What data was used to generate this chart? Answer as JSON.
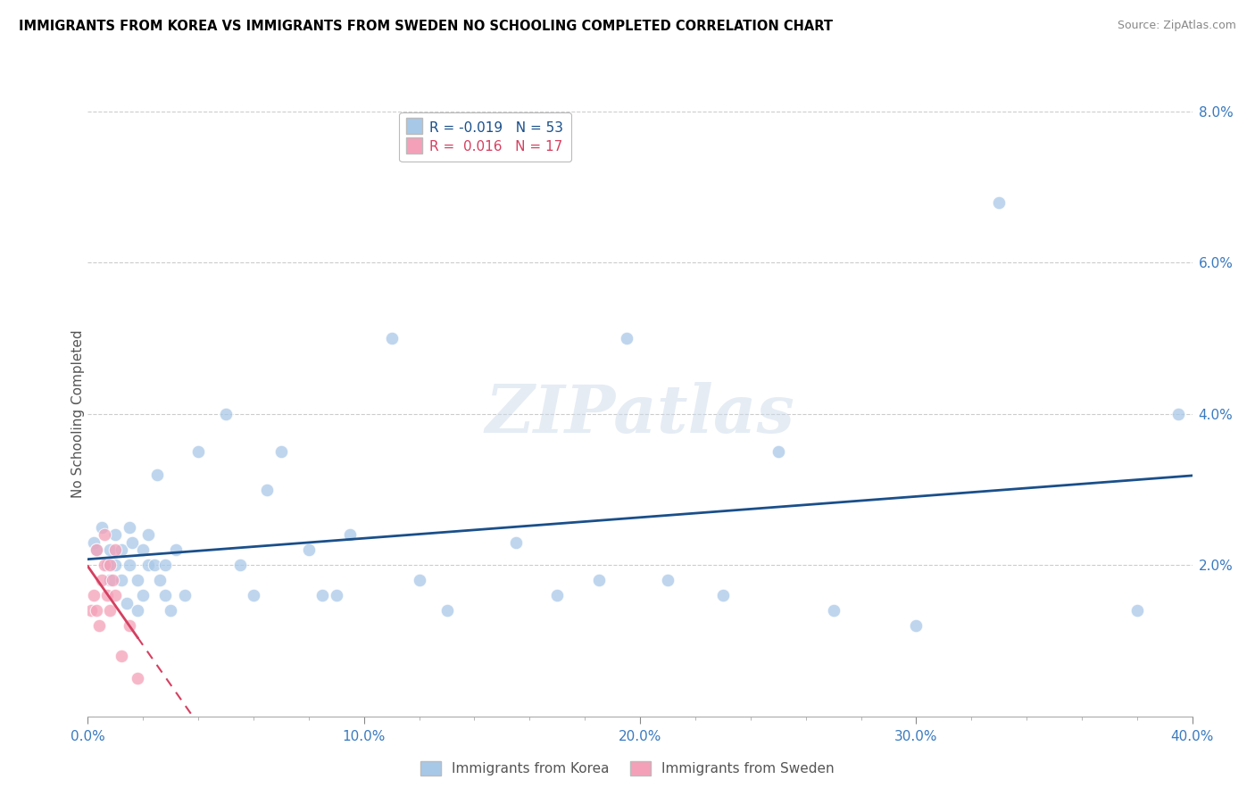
{
  "title": "IMMIGRANTS FROM KOREA VS IMMIGRANTS FROM SWEDEN NO SCHOOLING COMPLETED CORRELATION CHART",
  "source": "Source: ZipAtlas.com",
  "ylabel": "No Schooling Completed",
  "xlim": [
    0.0,
    0.4
  ],
  "ylim": [
    0.0,
    0.08
  ],
  "xtick_labels": [
    "0.0%",
    "",
    "",
    "",
    "",
    "10.0%",
    "",
    "",
    "",
    "",
    "20.0%",
    "",
    "",
    "",
    "",
    "30.0%",
    "",
    "",
    "",
    "",
    "40.0%"
  ],
  "xtick_vals": [
    0.0,
    0.02,
    0.04,
    0.06,
    0.08,
    0.1,
    0.12,
    0.14,
    0.16,
    0.18,
    0.2,
    0.22,
    0.24,
    0.26,
    0.28,
    0.3,
    0.32,
    0.34,
    0.36,
    0.38,
    0.4
  ],
  "ytick_labels": [
    "2.0%",
    "4.0%",
    "6.0%",
    "8.0%"
  ],
  "ytick_vals": [
    0.02,
    0.04,
    0.06,
    0.08
  ],
  "korea_R": -0.019,
  "korea_N": 53,
  "sweden_R": 0.016,
  "sweden_N": 17,
  "korea_color": "#a8c8e8",
  "sweden_color": "#f4a0b8",
  "korea_line_color": "#1a4f8a",
  "sweden_line_color": "#d44060",
  "watermark": "ZIPatlas",
  "legend_korea": "Immigrants from Korea",
  "legend_sweden": "Immigrants from Sweden",
  "korea_x": [
    0.002,
    0.003,
    0.005,
    0.007,
    0.008,
    0.008,
    0.01,
    0.01,
    0.012,
    0.012,
    0.014,
    0.015,
    0.015,
    0.016,
    0.018,
    0.018,
    0.02,
    0.02,
    0.022,
    0.022,
    0.024,
    0.025,
    0.026,
    0.028,
    0.028,
    0.03,
    0.032,
    0.035,
    0.04,
    0.05,
    0.055,
    0.06,
    0.065,
    0.07,
    0.08,
    0.085,
    0.09,
    0.095,
    0.11,
    0.12,
    0.13,
    0.155,
    0.17,
    0.185,
    0.195,
    0.21,
    0.23,
    0.25,
    0.27,
    0.3,
    0.33,
    0.38,
    0.395
  ],
  "korea_y": [
    0.023,
    0.022,
    0.025,
    0.02,
    0.018,
    0.022,
    0.024,
    0.02,
    0.022,
    0.018,
    0.015,
    0.025,
    0.02,
    0.023,
    0.018,
    0.014,
    0.022,
    0.016,
    0.02,
    0.024,
    0.02,
    0.032,
    0.018,
    0.02,
    0.016,
    0.014,
    0.022,
    0.016,
    0.035,
    0.04,
    0.02,
    0.016,
    0.03,
    0.035,
    0.022,
    0.016,
    0.016,
    0.024,
    0.05,
    0.018,
    0.014,
    0.023,
    0.016,
    0.018,
    0.05,
    0.018,
    0.016,
    0.035,
    0.014,
    0.012,
    0.068,
    0.014,
    0.04
  ],
  "sweden_x": [
    0.001,
    0.002,
    0.003,
    0.003,
    0.004,
    0.005,
    0.006,
    0.006,
    0.007,
    0.008,
    0.008,
    0.009,
    0.01,
    0.01,
    0.012,
    0.015,
    0.018
  ],
  "sweden_y": [
    0.014,
    0.016,
    0.022,
    0.014,
    0.012,
    0.018,
    0.02,
    0.024,
    0.016,
    0.014,
    0.02,
    0.018,
    0.016,
    0.022,
    0.008,
    0.012,
    0.005
  ]
}
